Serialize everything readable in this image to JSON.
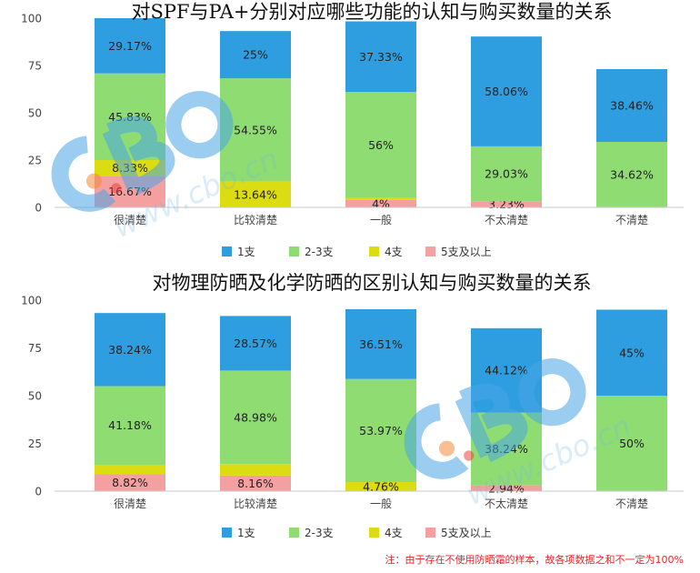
{
  "colors": {
    "1支": "#2e9ee0",
    "2-3支": "#8edc72",
    "4支": "#dcdc12",
    "5支及以上": "#f5a0a0"
  },
  "legend_items": [
    "1支",
    "2-3支",
    "4支",
    "5支及以上"
  ],
  "watermark": {
    "logo": "CBO",
    "url": "www.cbo.cn"
  },
  "note": "注：由于存在不使用防晒霜的样本，故各项数据之和不一定为100%",
  "chart_data": [
    {
      "type": "bar",
      "stacked": true,
      "title": "对SPF与PA+分别对应哪些功能的认知与购买数量的关系",
      "categories": [
        "很清楚",
        "比较清楚",
        "一般",
        "不太清楚",
        "不清楚"
      ],
      "ylim": [
        0,
        100
      ],
      "yticks": [
        0,
        25,
        50,
        75,
        100
      ],
      "grid": false,
      "legend_position": "bottom",
      "series": [
        {
          "name": "5支及以上",
          "values": [
            16.67,
            0,
            4,
            3.23,
            0
          ],
          "labels": [
            "16.67%",
            "",
            "4%",
            "3.23%",
            ""
          ]
        },
        {
          "name": "4支",
          "values": [
            8.33,
            13.64,
            1,
            0,
            0
          ],
          "labels": [
            "8.33%",
            "13.64%",
            "",
            "",
            ""
          ]
        },
        {
          "name": "2-3支",
          "values": [
            45.83,
            54.55,
            56,
            29.03,
            34.62
          ],
          "labels": [
            "45.83%",
            "54.55%",
            "56%",
            "29.03%",
            "34.62%"
          ]
        },
        {
          "name": "1支",
          "values": [
            29.17,
            25,
            37.33,
            58.06,
            38.46
          ],
          "labels": [
            "29.17%",
            "25%",
            "37.33%",
            "58.06%",
            "38.46%"
          ]
        }
      ]
    },
    {
      "type": "bar",
      "stacked": true,
      "title": "对物理防晒及化学防晒的区别认知与购买数量的关系",
      "categories": [
        "很清楚",
        "比较清楚",
        "一般",
        "不太清楚",
        "不清楚"
      ],
      "ylim": [
        0,
        100
      ],
      "yticks": [
        0,
        25,
        50,
        75,
        100
      ],
      "grid": false,
      "legend_position": "bottom",
      "series": [
        {
          "name": "5支及以上",
          "values": [
            8.82,
            8.16,
            0,
            2.94,
            0
          ],
          "labels": [
            "8.82%",
            "8.16%",
            "",
            "2.94%",
            ""
          ]
        },
        {
          "name": "4支",
          "values": [
            5,
            6,
            4.76,
            0,
            0
          ],
          "labels": [
            "",
            "",
            "4.76%",
            "",
            ""
          ]
        },
        {
          "name": "2-3支",
          "values": [
            41.18,
            48.98,
            53.97,
            38.24,
            50
          ],
          "labels": [
            "41.18%",
            "48.98%",
            "53.97%",
            "38.24%",
            "50%"
          ]
        },
        {
          "name": "1支",
          "values": [
            38.24,
            28.57,
            36.51,
            44.12,
            45
          ],
          "labels": [
            "38.24%",
            "28.57%",
            "36.51%",
            "44.12%",
            "45%"
          ]
        }
      ]
    }
  ]
}
